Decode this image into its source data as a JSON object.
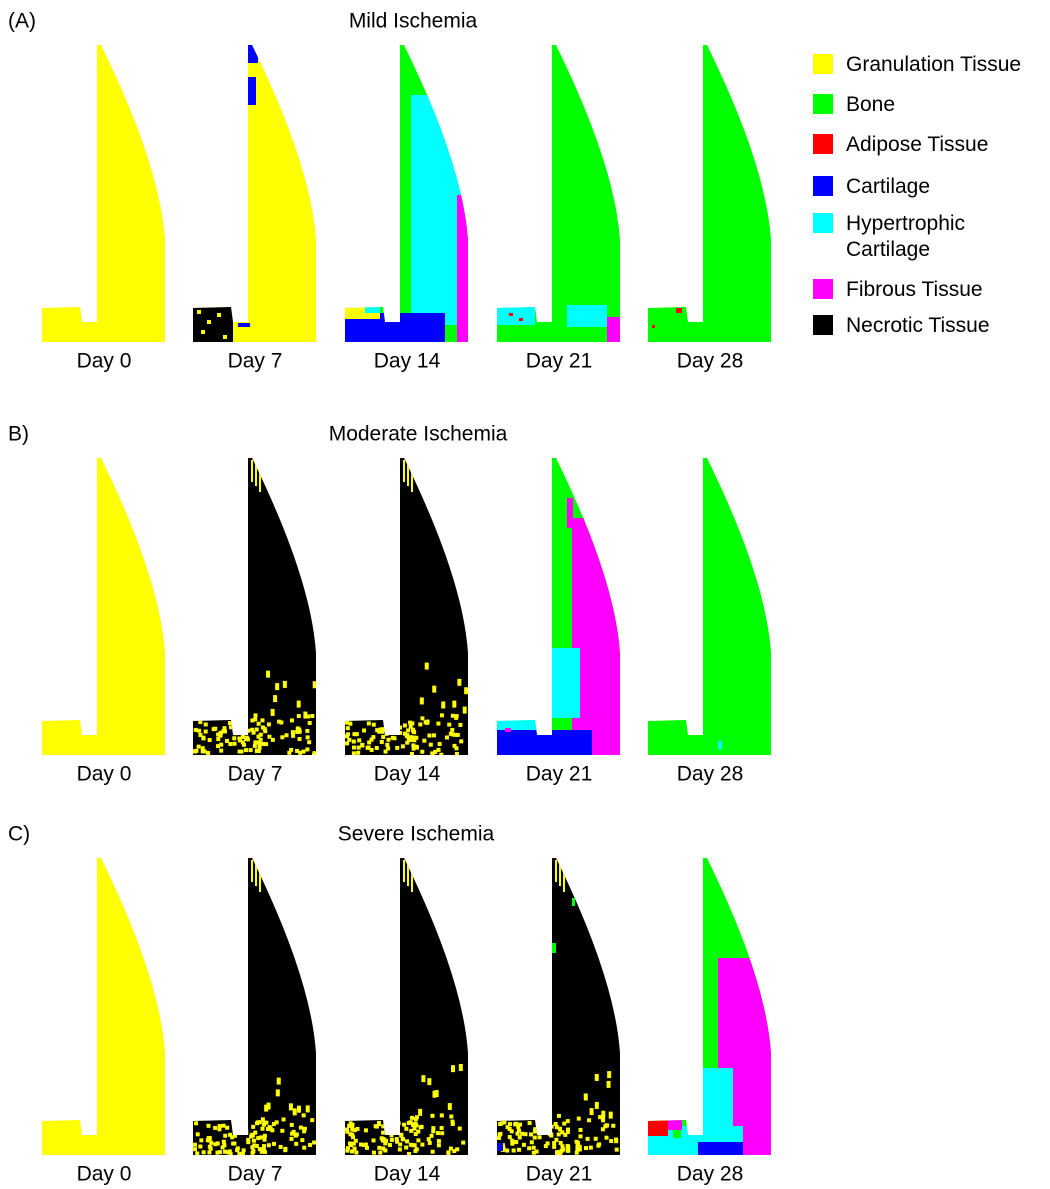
{
  "panels": [
    {
      "label": "(A)",
      "title": "Mild Ischemia",
      "days": [
        "Day 0",
        "Day 7",
        "Day 14",
        "Day 21",
        "Day 28"
      ]
    },
    {
      "label": "B)",
      "title": "Moderate Ischemia",
      "days": [
        "Day 0",
        "Day 7",
        "Day 14",
        "Day 21",
        "Day 28"
      ]
    },
    {
      "label": "C)",
      "title": "Severe Ischemia",
      "days": [
        "Day 0",
        "Day 7",
        "Day 14",
        "Day 21",
        "Day 28"
      ]
    }
  ],
  "legend": [
    {
      "label": "Granulation Tissue",
      "color": "#ffff00"
    },
    {
      "label": "Bone",
      "color": "#00ff00"
    },
    {
      "label": "Adipose Tissue",
      "color": "#ff0000"
    },
    {
      "label": "Cartilage",
      "color": "#0000ff"
    },
    {
      "label": "Hypertrophic Cartilage",
      "color": "#00ffff"
    },
    {
      "label": "Fibrous Tissue",
      "color": "#ff00ff"
    },
    {
      "label": "Necrotic Tissue",
      "color": "#000000"
    }
  ]
}
